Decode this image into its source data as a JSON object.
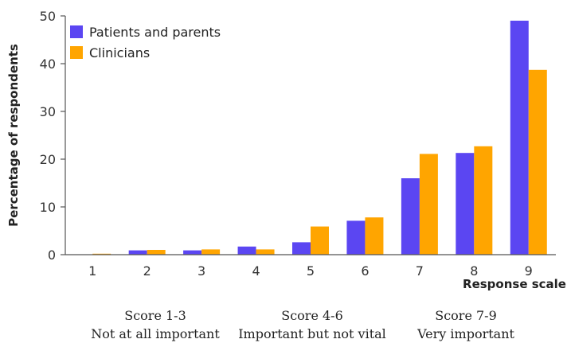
{
  "chart_data": {
    "type": "bar",
    "categories": [
      "1",
      "2",
      "3",
      "4",
      "5",
      "6",
      "7",
      "8",
      "9"
    ],
    "series": [
      {
        "name": "Patients and parents",
        "values": [
          0,
          0.9,
          0.9,
          1.7,
          2.6,
          7.1,
          16.0,
          21.3,
          49.0
        ]
      },
      {
        "name": "Clinicians",
        "values": [
          0.2,
          1.0,
          1.1,
          1.1,
          5.9,
          7.8,
          21.1,
          22.7,
          38.7
        ]
      }
    ],
    "colors": [
      "#5b46f2",
      "#ffa500"
    ],
    "xlabel": "Response scale",
    "ylabel": "Percentage of respondents",
    "ylim": [
      0,
      50
    ],
    "yticks": [
      0,
      10,
      20,
      30,
      40,
      50
    ],
    "legend_position": "top-left",
    "grid": false,
    "groups": [
      {
        "title": "Score 1-3",
        "subtitle": "Not at all important",
        "categories": [
          "1",
          "2",
          "3"
        ]
      },
      {
        "title": "Score 4-6",
        "subtitle": "Important but not vital",
        "categories": [
          "4",
          "5",
          "6"
        ]
      },
      {
        "title": "Score 7-9",
        "subtitle": "Very important",
        "categories": [
          "7",
          "8",
          "9"
        ]
      }
    ]
  }
}
